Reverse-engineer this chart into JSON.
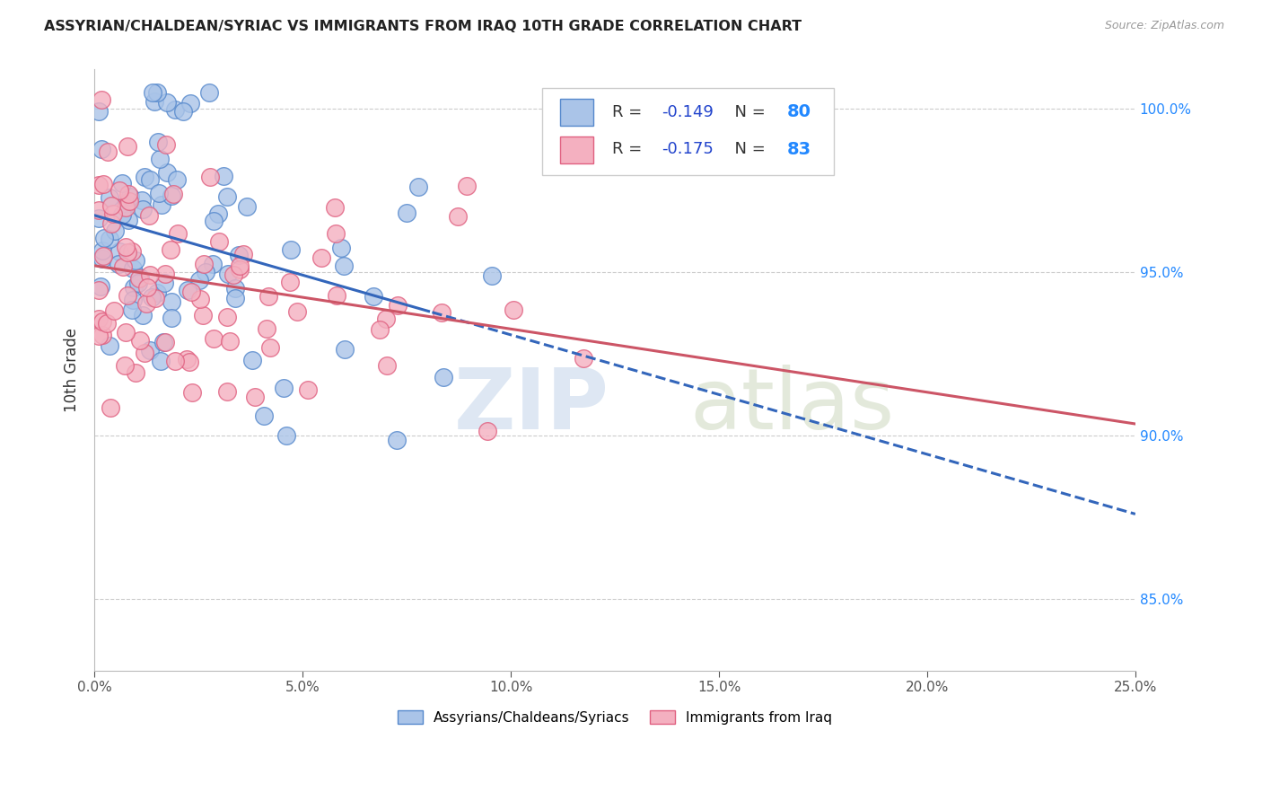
{
  "title": "ASSYRIAN/CHALDEAN/SYRIAC VS IMMIGRANTS FROM IRAQ 10TH GRADE CORRELATION CHART",
  "source": "Source: ZipAtlas.com",
  "ylabel": "10th Grade",
  "xlim": [
    0.0,
    0.25
  ],
  "ylim": [
    0.828,
    1.012
  ],
  "series1_color": "#aac4e8",
  "series1_edge": "#5588cc",
  "series2_color": "#f4b0c0",
  "series2_edge": "#e06080",
  "line1_color": "#3366bb",
  "line2_color": "#cc5566",
  "R1": -0.149,
  "N1": 80,
  "R2": -0.175,
  "N2": 83,
  "legend_label1": "Assyrians/Chaldeans/Syriacs",
  "legend_label2": "Immigrants from Iraq",
  "xtick_vals": [
    0.0,
    0.05,
    0.1,
    0.15,
    0.2,
    0.25
  ],
  "xtick_labels": [
    "0.0%",
    "5.0%",
    "10.0%",
    "15.0%",
    "20.0%",
    "25.0%"
  ],
  "ytick_vals": [
    0.85,
    0.9,
    0.95,
    1.0
  ],
  "ytick_labels": [
    "85.0%",
    "90.0%",
    "95.0%",
    "100.0%"
  ],
  "grid_color": "#cccccc",
  "line1_intercept": 0.963,
  "line1_slope": -0.18,
  "line2_intercept": 0.955,
  "line2_slope": -0.22,
  "line1_solid_end": 0.185,
  "line2_solid_end": 0.25
}
